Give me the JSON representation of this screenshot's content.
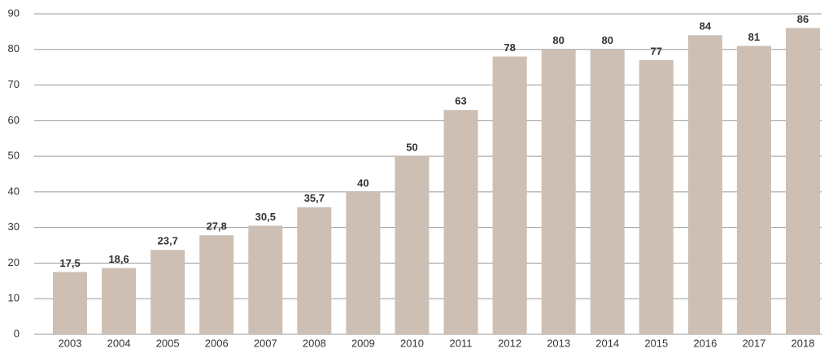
{
  "chart_data": {
    "type": "bar",
    "categories": [
      "2003",
      "2004",
      "2005",
      "2006",
      "2007",
      "2008",
      "2009",
      "2010",
      "2011",
      "2012",
      "2013",
      "2014",
      "2015",
      "2016",
      "2017",
      "2018"
    ],
    "values": [
      17.5,
      18.6,
      23.7,
      27.8,
      30.5,
      35.7,
      40,
      50,
      63,
      78,
      80,
      80,
      77,
      84,
      81,
      86
    ],
    "value_labels": [
      "17,5",
      "18,6",
      "23,7",
      "27,8",
      "30,5",
      "35,7",
      "40",
      "50",
      "63",
      "78",
      "80",
      "80",
      "77",
      "84",
      "81",
      "86"
    ],
    "color": "#cdbfb3",
    "ylim": [
      0,
      90
    ],
    "yticks": [
      0,
      10,
      20,
      30,
      40,
      50,
      60,
      70,
      80,
      90
    ],
    "grid": true
  }
}
